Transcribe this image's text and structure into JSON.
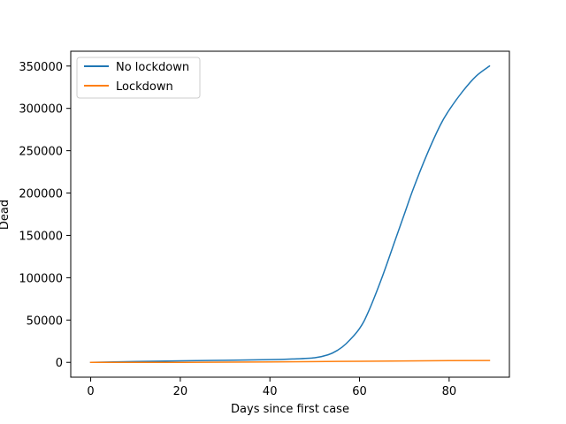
{
  "chart_data": {
    "type": "line",
    "title": "",
    "xlabel": "Days since first case",
    "ylabel": "Dead",
    "xlim": [
      -4.45,
      93.45
    ],
    "ylim": [
      -17500,
      367500
    ],
    "xticks": [
      0,
      20,
      40,
      60,
      80
    ],
    "yticks": [
      0,
      50000,
      100000,
      150000,
      200000,
      250000,
      300000,
      350000
    ],
    "grid": false,
    "legend_position": "upper left",
    "series": [
      {
        "name": "No lockdown",
        "color": "#1f77b4",
        "x": [
          0,
          10,
          20,
          30,
          40,
          45,
          50,
          53,
          55,
          57,
          60,
          62,
          65,
          68,
          70,
          72,
          75,
          78,
          80,
          83,
          86,
          89
        ],
        "y": [
          0,
          1000,
          1800,
          2500,
          3200,
          4000,
          5500,
          9000,
          14000,
          22000,
          40000,
          60000,
          100000,
          145000,
          175000,
          205000,
          245000,
          280000,
          298000,
          320000,
          338000,
          350000
        ]
      },
      {
        "name": "Lockdown",
        "color": "#ff7f0e",
        "x": [
          0,
          20,
          40,
          60,
          80,
          89
        ],
        "y": [
          0,
          0,
          500,
          1300,
          2000,
          2200
        ]
      }
    ]
  }
}
